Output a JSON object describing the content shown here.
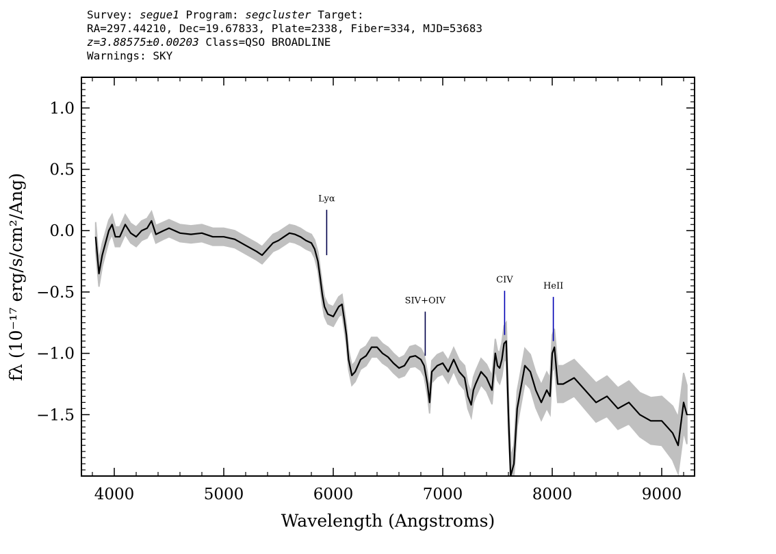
{
  "header": {
    "survey_label": "Survey:",
    "survey": "segue1",
    "program_label": "Program:",
    "program": "segcluster",
    "target_label": "Target:",
    "line2": "RA=297.44210, Dec=19.67833, Plate=2338, Fiber=334, MJD=53683",
    "redshift": "z=3.88575±0.00203",
    "class": "Class=QSO BROADLINE",
    "warnings": "Warnings: SKY"
  },
  "chart_data": {
    "type": "line",
    "xlabel": "Wavelength (Angstroms)",
    "ylabel": "fλ (10⁻¹⁷ erg/s/cm²/Ang)",
    "xlim": [
      3700,
      9300
    ],
    "ylim": [
      -2.0,
      1.25
    ],
    "xticks": [
      4000,
      5000,
      6000,
      7000,
      8000,
      9000
    ],
    "yticks": [
      1.0,
      0.5,
      0.0,
      -0.5,
      -1.0,
      -1.5
    ],
    "xtick_labels": [
      "4000",
      "5000",
      "6000",
      "7000",
      "8000",
      "9000"
    ],
    "ytick_labels": [
      "1.0",
      "0.5",
      "0.0",
      "−0.5",
      "−1.0",
      "−1.5"
    ],
    "colors": {
      "flux": "#000000",
      "error_band": "#c0c0c0",
      "line_marker_ly": "#00004a",
      "line_marker_blue": "#0000b4"
    },
    "series": [
      {
        "role": "flux",
        "x": [
          3830,
          3860,
          3890,
          3920,
          3950,
          3980,
          4010,
          4050,
          4100,
          4150,
          4200,
          4250,
          4300,
          4340,
          4380,
          4450,
          4500,
          4600,
          4700,
          4800,
          4900,
          5000,
          5100,
          5200,
          5300,
          5350,
          5400,
          5450,
          5500,
          5550,
          5600,
          5650,
          5700,
          5750,
          5800,
          5830,
          5860,
          5880,
          5900,
          5920,
          5950,
          6000,
          6050,
          6080,
          6100,
          6120,
          6140,
          6170,
          6200,
          6250,
          6300,
          6350,
          6400,
          6450,
          6500,
          6550,
          6600,
          6650,
          6700,
          6750,
          6800,
          6830,
          6860,
          6880,
          6900,
          6950,
          7000,
          7050,
          7100,
          7150,
          7200,
          7230,
          7260,
          7280,
          7300,
          7350,
          7400,
          7450,
          7480,
          7500,
          7520,
          7540,
          7560,
          7580,
          7600,
          7620,
          7650,
          7680,
          7700,
          7750,
          7800,
          7850,
          7900,
          7950,
          7980,
          8000,
          8020,
          8050,
          8100,
          8200,
          8300,
          8400,
          8500,
          8600,
          8700,
          8800,
          8900,
          9000,
          9050,
          9100,
          9150,
          9200,
          9230
        ],
        "y": [
          -0.05,
          -0.35,
          -0.2,
          -0.1,
          0.0,
          0.05,
          -0.05,
          -0.05,
          0.05,
          -0.02,
          -0.05,
          0.0,
          0.02,
          0.08,
          -0.03,
          0.0,
          0.02,
          -0.02,
          -0.03,
          -0.02,
          -0.05,
          -0.05,
          -0.07,
          -0.12,
          -0.17,
          -0.2,
          -0.15,
          -0.1,
          -0.08,
          -0.05,
          -0.02,
          -0.03,
          -0.05,
          -0.08,
          -0.1,
          -0.15,
          -0.25,
          -0.38,
          -0.52,
          -0.62,
          -0.68,
          -0.7,
          -0.62,
          -0.6,
          -0.72,
          -0.85,
          -1.05,
          -1.18,
          -1.15,
          -1.05,
          -1.02,
          -0.95,
          -0.95,
          -1.0,
          -1.03,
          -1.08,
          -1.12,
          -1.1,
          -1.03,
          -1.02,
          -1.05,
          -1.1,
          -1.25,
          -1.4,
          -1.15,
          -1.1,
          -1.08,
          -1.15,
          -1.05,
          -1.15,
          -1.2,
          -1.35,
          -1.42,
          -1.3,
          -1.25,
          -1.15,
          -1.2,
          -1.3,
          -1.0,
          -1.1,
          -1.12,
          -1.05,
          -0.92,
          -0.9,
          -1.5,
          -2.0,
          -1.9,
          -1.45,
          -1.35,
          -1.1,
          -1.15,
          -1.3,
          -1.4,
          -1.3,
          -1.35,
          -1.0,
          -0.95,
          -1.25,
          -1.25,
          -1.2,
          -1.3,
          -1.4,
          -1.35,
          -1.45,
          -1.4,
          -1.5,
          -1.55,
          -1.55,
          -1.6,
          -1.65,
          -1.75,
          -1.4,
          -1.5
        ]
      },
      {
        "role": "error_band",
        "x": [
          3830,
          3900,
          4000,
          4100,
          4200,
          4300,
          4400,
          4600,
          4800,
          5000,
          5200,
          5400,
          5600,
          5800,
          5900,
          6000,
          6100,
          6200,
          6400,
          6600,
          6800,
          7000,
          7200,
          7400,
          7500,
          7600,
          7700,
          7800,
          8000,
          8200,
          8400,
          8600,
          8800,
          9000,
          9200
        ],
        "half_width": [
          0.12,
          0.09,
          0.08,
          0.08,
          0.08,
          0.08,
          0.07,
          0.07,
          0.07,
          0.07,
          0.07,
          0.07,
          0.07,
          0.07,
          0.08,
          0.08,
          0.08,
          0.08,
          0.08,
          0.08,
          0.09,
          0.09,
          0.1,
          0.11,
          0.12,
          0.16,
          0.14,
          0.14,
          0.15,
          0.15,
          0.16,
          0.17,
          0.18,
          0.2,
          0.24
        ]
      }
    ],
    "annotations": [
      {
        "label": "Lyα",
        "x": 5940,
        "y_top": 0.17,
        "y_bottom": -0.2,
        "color": "#00004a"
      },
      {
        "label": "SIV+OIV",
        "x": 6840,
        "y_top": -0.66,
        "y_bottom": -1.02,
        "color": "#00004a"
      },
      {
        "label": "CIV",
        "x": 7565,
        "y_top": -0.49,
        "y_bottom": -0.85,
        "color": "#0000b4"
      },
      {
        "label": "HeII",
        "x": 8010,
        "y_top": -0.54,
        "y_bottom": -0.9,
        "color": "#0000b4"
      }
    ]
  }
}
